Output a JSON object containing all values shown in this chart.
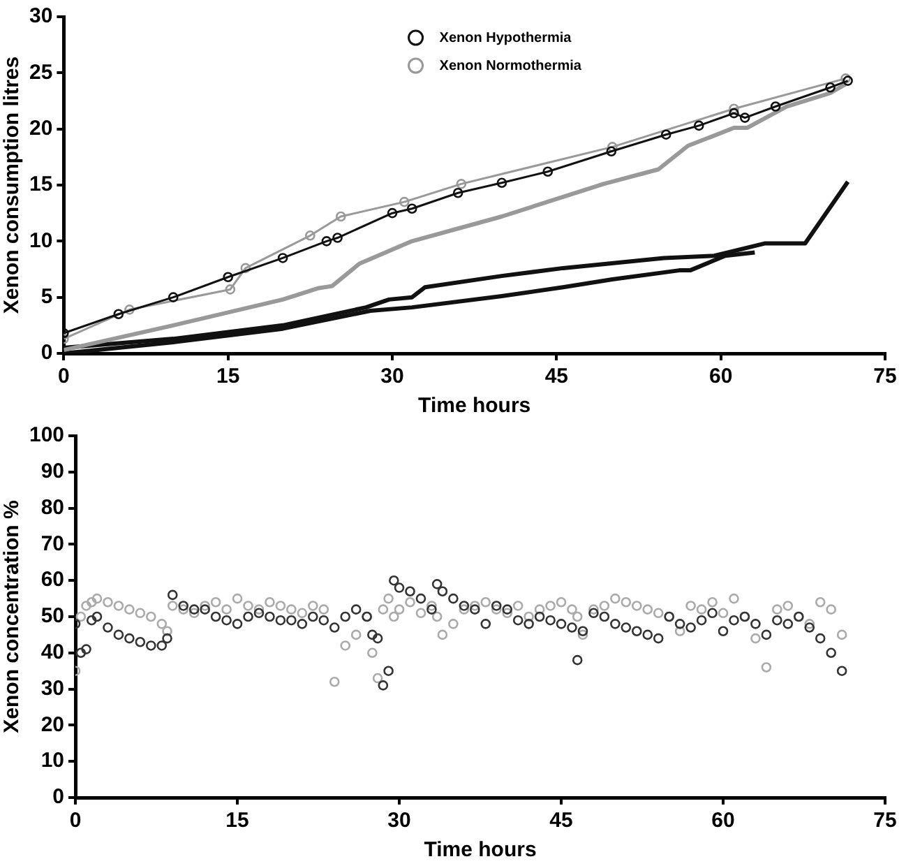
{
  "chart_data": [
    {
      "type": "line",
      "xlabel": "Time hours",
      "ylabel": "Xenon consumption litres",
      "xlim": [
        0,
        75
      ],
      "xticks": [
        0,
        15,
        30,
        45,
        60,
        75
      ],
      "ylim": [
        0,
        30
      ],
      "yticks": [
        0,
        5,
        10,
        15,
        20,
        25,
        30
      ],
      "grid": false,
      "legend": "top",
      "series": [
        {
          "name": "Xenon Hypothermia",
          "color": "#111111",
          "marker": "circle",
          "x": [
            0,
            5,
            10,
            15,
            20,
            24,
            25,
            30,
            31.8,
            36,
            40,
            44.2,
            50,
            55,
            58,
            61.2,
            62.2,
            65,
            70,
            71.6
          ],
          "values": [
            1.8,
            3.5,
            5,
            6.8,
            8.5,
            10,
            10.3,
            12.5,
            12.9,
            14.3,
            15.2,
            16.2,
            18,
            19.5,
            20.3,
            21.4,
            21,
            22,
            23.7,
            24.3
          ]
        },
        {
          "name": "Xenon Normothermia",
          "color": "#999999",
          "marker": "circle",
          "x": [
            0,
            6,
            15.2,
            16.6,
            22.5,
            25.3,
            31.1,
            36.3,
            50.1,
            61.2,
            71.4
          ],
          "values": [
            1.3,
            3.9,
            5.7,
            7.6,
            10.5,
            12.2,
            13.5,
            15.1,
            18.4,
            21.8,
            24.5
          ]
        },
        {
          "color": "#999999",
          "marker": "none",
          "x": [
            0,
            10,
            20,
            23.2,
            24.5,
            27,
            31.8,
            40,
            49.3,
            54.3,
            57,
            61.2,
            62.4,
            66,
            70,
            71.4
          ],
          "values": [
            0.3,
            2.5,
            4.8,
            5.8,
            6,
            8,
            10,
            12.2,
            15.1,
            16.4,
            18.5,
            20.1,
            20.1,
            22,
            23.2,
            24
          ]
        },
        {
          "color": "#111111",
          "marker": "none",
          "x": [
            0,
            10,
            20,
            27.6,
            29.7,
            31.8,
            33,
            40,
            45.6,
            54.8,
            59.4,
            64,
            67.7,
            71.6
          ],
          "values": [
            0.5,
            1.3,
            2.5,
            4.1,
            4.8,
            5,
            5.9,
            6.9,
            7.6,
            8.5,
            8.7,
            9.8,
            9.8,
            15.3
          ]
        },
        {
          "color": "#111111",
          "marker": "none",
          "x": [
            0,
            10,
            20,
            28,
            31.8,
            40,
            45.6,
            50.1,
            56.2,
            57.2,
            60.4,
            63.1
          ],
          "values": [
            0,
            1,
            2.2,
            3.8,
            4.1,
            5.1,
            5.9,
            6.6,
            7.4,
            7.4,
            8.7,
            9
          ]
        }
      ]
    },
    {
      "type": "scatter",
      "xlabel": "Time hours",
      "ylabel": "Xenon concentration %",
      "xlim": [
        0,
        75
      ],
      "xticks": [
        0,
        15,
        30,
        45,
        60,
        75
      ],
      "ylim": [
        0,
        100
      ],
      "yticks": [
        0,
        10,
        20,
        30,
        40,
        50,
        60,
        70,
        80,
        90,
        100
      ],
      "grid": false,
      "marker": "circle",
      "series": [
        {
          "color": "#333333",
          "x": [
            0,
            0.5,
            1,
            1.5,
            2,
            3,
            4,
            5,
            6,
            7,
            8,
            8.5,
            9,
            10,
            11,
            12,
            13,
            14,
            15,
            16,
            17,
            18,
            19,
            20,
            21,
            22,
            23,
            24,
            25,
            26,
            27,
            27.5,
            28,
            28.5,
            29,
            29.5,
            30,
            31,
            32,
            33,
            33.5,
            34,
            35,
            36,
            37,
            38,
            39,
            40,
            41,
            42,
            43,
            44,
            45,
            46,
            46.5,
            47,
            48,
            49,
            50,
            51,
            52,
            53,
            54,
            55,
            56,
            57,
            58,
            59,
            60,
            61,
            62,
            63,
            64,
            65,
            66,
            67,
            68,
            69,
            70,
            71
          ],
          "values": [
            48,
            40,
            41,
            49,
            50,
            47,
            45,
            44,
            43,
            42,
            42,
            44,
            56,
            53,
            52,
            52,
            50,
            49,
            48,
            50,
            51,
            50,
            49,
            49,
            48,
            50,
            49,
            47,
            50,
            52,
            50,
            45,
            44,
            31,
            35,
            60,
            58,
            57,
            55,
            52,
            59,
            57,
            55,
            53,
            52,
            48,
            53,
            52,
            49,
            48,
            50,
            49,
            48,
            47,
            38,
            46,
            51,
            50,
            48,
            47,
            46,
            45,
            44,
            50,
            48,
            47,
            49,
            51,
            46,
            49,
            50,
            48,
            45,
            49,
            48,
            50,
            47,
            44,
            40,
            35
          ]
        },
        {
          "color": "#aaaaaa",
          "x": [
            0,
            0.5,
            1,
            1.5,
            2,
            3,
            4,
            5,
            6,
            7,
            8,
            8.5,
            9,
            10,
            11,
            12,
            13,
            14,
            15,
            16,
            17,
            18,
            19,
            20,
            21,
            22,
            23,
            24,
            25,
            26,
            27,
            27.5,
            28,
            28.5,
            29,
            29.5,
            30,
            31,
            32,
            33,
            33.5,
            34,
            35,
            36,
            37,
            38,
            39,
            40,
            41,
            42,
            43,
            44,
            45,
            46,
            46.5,
            47,
            48,
            49,
            50,
            51,
            52,
            53,
            54,
            55,
            56,
            57,
            58,
            59,
            60,
            61,
            62,
            63,
            64,
            65,
            66,
            67,
            68,
            69,
            70,
            71
          ],
          "values": [
            35,
            50,
            53,
            54,
            55,
            54,
            53,
            52,
            51,
            50,
            48,
            46,
            53,
            52,
            51,
            53,
            54,
            52,
            55,
            53,
            52,
            54,
            53,
            52,
            51,
            53,
            52,
            32,
            42,
            45,
            50,
            40,
            33,
            52,
            55,
            50,
            52,
            54,
            51,
            53,
            50,
            45,
            48,
            52,
            53,
            54,
            52,
            51,
            53,
            50,
            52,
            53,
            54,
            52,
            50,
            45,
            52,
            53,
            55,
            54,
            53,
            52,
            51,
            50,
            46,
            53,
            52,
            54,
            51,
            55,
            50,
            44,
            36,
            52,
            53,
            50,
            48,
            54,
            52,
            45
          ]
        }
      ]
    }
  ]
}
